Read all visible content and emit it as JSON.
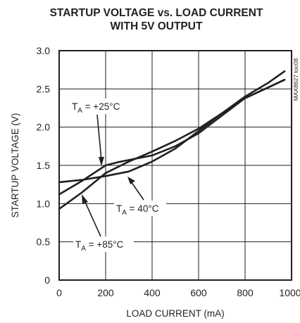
{
  "chart_data": {
    "type": "line",
    "title_line1": "STARTUP VOLTAGE vs. LOAD CURRENT",
    "title_line2": "WITH 5V OUTPUT",
    "xlabel": "LOAD CURRENT (mA)",
    "ylabel": "STARTUP VOLTAGE (V)",
    "xlim": [
      0,
      1000
    ],
    "ylim": [
      0,
      3.0
    ],
    "xticks": [
      "0",
      "200",
      "400",
      "600",
      "800",
      "1000"
    ],
    "yticks": [
      "0",
      "0.5",
      "1.0",
      "1.5",
      "2.0",
      "2.5",
      "3.0"
    ],
    "grid": true,
    "watermark": "MAX8627 toc08",
    "series": [
      {
        "name_main": "T",
        "name_sub": "A",
        "name_rest": " = +25°C",
        "x": [
          0,
          100,
          200,
          300,
          400,
          500,
          600,
          700,
          800,
          900,
          970
        ],
        "y": [
          1.28,
          1.31,
          1.36,
          1.42,
          1.55,
          1.72,
          1.95,
          2.18,
          2.4,
          2.58,
          2.73
        ]
      },
      {
        "name_main": "T",
        "name_sub": "A",
        "name_rest": " = 40°C",
        "x": [
          0,
          100,
          200,
          250,
          300,
          400,
          500,
          600,
          700,
          800,
          900,
          970
        ],
        "y": [
          1.12,
          1.3,
          1.5,
          1.54,
          1.57,
          1.63,
          1.75,
          1.92,
          2.15,
          2.38,
          2.52,
          2.62
        ]
      },
      {
        "name_main": "T",
        "name_sub": "A",
        "name_rest": " = +85°C",
        "x": [
          0,
          100,
          200,
          300,
          400,
          500,
          600,
          700,
          800,
          900,
          970
        ],
        "y": [
          0.93,
          1.15,
          1.4,
          1.55,
          1.68,
          1.82,
          1.98,
          2.18,
          2.38,
          2.52,
          2.62
        ]
      }
    ]
  }
}
